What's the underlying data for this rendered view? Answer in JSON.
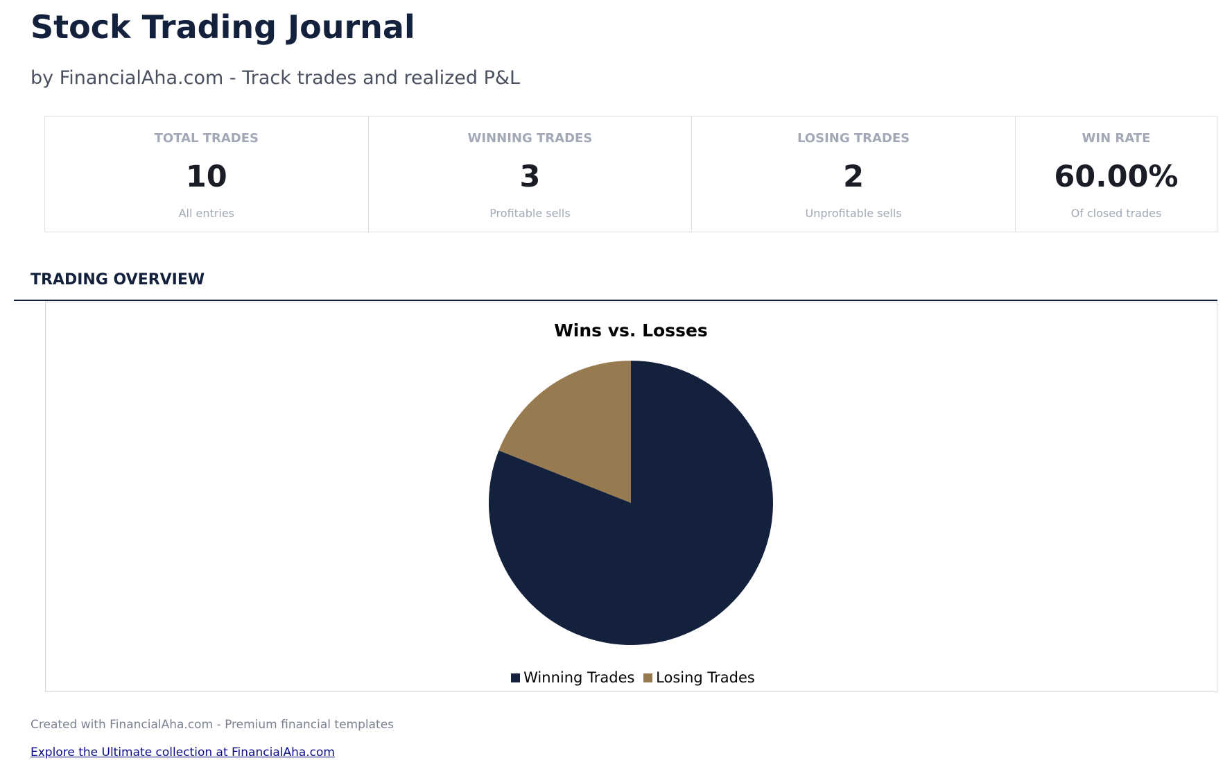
{
  "header": {
    "title": "Stock Trading Journal",
    "subtitle": "by FinancialAha.com - Track trades and realized P&L"
  },
  "stats": [
    {
      "label": "TOTAL TRADES",
      "value": "10",
      "sub": "All entries"
    },
    {
      "label": "WINNING TRADES",
      "value": "3",
      "sub": "Profitable sells"
    },
    {
      "label": "LOSING TRADES",
      "value": "2",
      "sub": "Unprofitable sells"
    },
    {
      "label": "WIN RATE",
      "value": "60.00%",
      "sub": "Of closed trades"
    }
  ],
  "section": {
    "title": "TRADING OVERVIEW"
  },
  "chart_data": {
    "type": "pie",
    "title": "Wins vs. Losses",
    "categories": [
      "Winning Trades",
      "Losing Trades"
    ],
    "values": [
      81,
      19
    ],
    "colors": [
      "#14213d",
      "#977a4f"
    ],
    "legend": "bottom"
  },
  "footer": {
    "text": "Created with FinancialAha.com - Premium financial templates",
    "link": "Explore the Ultimate collection at FinancialAha.com"
  }
}
